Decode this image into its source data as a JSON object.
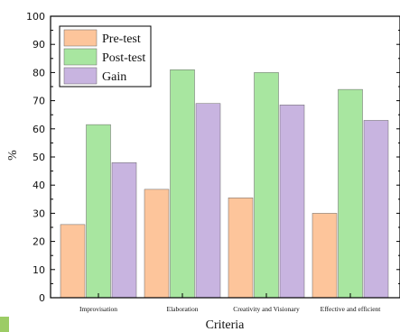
{
  "chart_data": {
    "type": "bar",
    "xlabel": "Criteria",
    "ylabel": "%",
    "ylim": [
      0,
      100
    ],
    "yticks": [
      0,
      10,
      20,
      30,
      40,
      50,
      60,
      70,
      80,
      90,
      100
    ],
    "grid": false,
    "legend": "top-left",
    "categories": [
      "Improvisation",
      "Elaboration",
      "Creativity and Visionary",
      "Effective and efficient"
    ],
    "series": [
      {
        "name": "Pre-test",
        "color": "#FDC59B",
        "values": [
          26,
          38.5,
          35.5,
          30
        ]
      },
      {
        "name": "Post-test",
        "color": "#A8E6A0",
        "values": [
          61.5,
          81,
          80,
          74
        ]
      },
      {
        "name": "Gain",
        "color": "#C8B4E0",
        "values": [
          48,
          69,
          68.5,
          63
        ]
      }
    ]
  }
}
